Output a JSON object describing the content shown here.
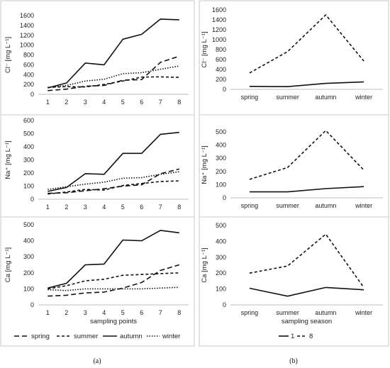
{
  "figure_labels": {
    "a": "(a)",
    "b": "(b)"
  },
  "legend_a": {
    "spring": "spring",
    "summer": "summer",
    "autumn": "autumn",
    "winter": "winter"
  },
  "legend_b": {
    "s1": "1",
    "s8": "8"
  },
  "colors": {
    "line": "#111111",
    "border": "#c8c8c8",
    "grid": "#e6e6e6",
    "axis": "#bdbdbd"
  },
  "chart_data": [
    {
      "id": "cl_points",
      "type": "line",
      "categories": [
        "1",
        "2",
        "3",
        "4",
        "5",
        "6",
        "7",
        "8"
      ],
      "xlabel": "",
      "ylabel": "Cl⁻ [mg L⁻¹]",
      "ylim": [
        0,
        1600
      ],
      "yticks": [
        0,
        200,
        400,
        600,
        800,
        1000,
        1200,
        1400,
        1600
      ],
      "series": [
        {
          "name": "spring",
          "style": "longdash",
          "values": [
            75,
            105,
            165,
            180,
            285,
            300,
            650,
            775
          ]
        },
        {
          "name": "summer",
          "style": "dash",
          "values": [
            140,
            155,
            150,
            200,
            270,
            350,
            355,
            345
          ]
        },
        {
          "name": "autumn",
          "style": "solid",
          "values": [
            130,
            230,
            635,
            600,
            1120,
            1220,
            1530,
            1515
          ]
        },
        {
          "name": "winter",
          "style": "dot",
          "values": [
            140,
            180,
            270,
            305,
            420,
            440,
            510,
            575
          ]
        }
      ]
    },
    {
      "id": "na_points",
      "type": "line",
      "categories": [
        "1",
        "2",
        "3",
        "4",
        "5",
        "6",
        "7",
        "8"
      ],
      "xlabel": "",
      "ylabel": "Na⁺ [mg L⁻¹]",
      "ylim": [
        0,
        600
      ],
      "yticks": [
        0,
        100,
        200,
        300,
        400,
        500,
        600
      ],
      "series": [
        {
          "name": "spring",
          "style": "longdash",
          "values": [
            45,
            50,
            65,
            80,
            100,
            110,
            195,
            230
          ]
        },
        {
          "name": "summer",
          "style": "dash",
          "values": [
            40,
            55,
            75,
            70,
            105,
            120,
            135,
            140
          ]
        },
        {
          "name": "autumn",
          "style": "solid",
          "values": [
            60,
            90,
            195,
            190,
            350,
            350,
            495,
            510
          ]
        },
        {
          "name": "winter",
          "style": "dot",
          "values": [
            75,
            95,
            115,
            130,
            160,
            165,
            190,
            210
          ]
        }
      ]
    },
    {
      "id": "ca_points",
      "type": "line",
      "categories": [
        "1",
        "2",
        "3",
        "4",
        "5",
        "6",
        "7",
        "8"
      ],
      "xlabel": "sampling points",
      "ylabel": "Ca [mg L⁻¹]",
      "ylim": [
        0,
        500
      ],
      "yticks": [
        0,
        100,
        200,
        300,
        400,
        500
      ],
      "series": [
        {
          "name": "spring",
          "style": "longdash",
          "values": [
            55,
            60,
            75,
            80,
            105,
            140,
            215,
            250
          ]
        },
        {
          "name": "summer",
          "style": "dash",
          "values": [
            100,
            120,
            150,
            160,
            185,
            190,
            195,
            200
          ]
        },
        {
          "name": "autumn",
          "style": "solid",
          "values": [
            105,
            135,
            250,
            255,
            405,
            400,
            465,
            450
          ]
        },
        {
          "name": "winter",
          "style": "dot",
          "values": [
            95,
            90,
            100,
            100,
            100,
            100,
            105,
            110
          ]
        }
      ]
    },
    {
      "id": "cl_season",
      "type": "line",
      "categories": [
        "spring",
        "summer",
        "autumn",
        "winter"
      ],
      "xlabel": "",
      "ylabel": "Cl⁻ [mg L⁻¹]",
      "ylim": [
        0,
        1600
      ],
      "yticks": [
        0,
        200,
        400,
        600,
        800,
        1000,
        1200,
        1400,
        1600
      ],
      "series": [
        {
          "name": "1",
          "style": "solid",
          "values": [
            60,
            55,
            120,
            150
          ]
        },
        {
          "name": "8",
          "style": "dash",
          "values": [
            330,
            760,
            1500,
            570
          ]
        }
      ]
    },
    {
      "id": "na_season",
      "type": "line",
      "categories": [
        "spring",
        "summer",
        "autumn",
        "winter"
      ],
      "xlabel": "",
      "ylabel": "Na⁺ [mg L⁻¹]",
      "ylim": [
        0,
        500
      ],
      "yticks": [
        0,
        100,
        200,
        300,
        400,
        500
      ],
      "series": [
        {
          "name": "1",
          "style": "solid",
          "values": [
            45,
            45,
            70,
            85
          ]
        },
        {
          "name": "8",
          "style": "dash",
          "values": [
            140,
            230,
            510,
            210
          ]
        }
      ]
    },
    {
      "id": "ca_season",
      "type": "line",
      "categories": [
        "spring",
        "summer",
        "autumn",
        "winter"
      ],
      "xlabel": "sampling season",
      "ylabel": "Ca [mg L⁻¹]",
      "ylim": [
        0,
        500
      ],
      "yticks": [
        0,
        100,
        200,
        300,
        400,
        500
      ],
      "series": [
        {
          "name": "1",
          "style": "solid",
          "values": [
            105,
            55,
            110,
            95
          ]
        },
        {
          "name": "8",
          "style": "dash",
          "values": [
            200,
            245,
            445,
            110
          ]
        }
      ]
    }
  ]
}
